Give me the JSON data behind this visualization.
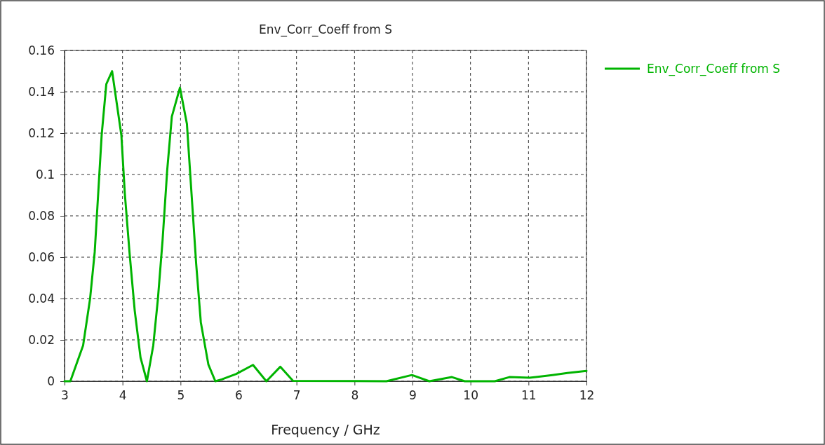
{
  "chart_data": {
    "type": "line",
    "title": "Env_Corr_Coeff from S",
    "xlabel": "Frequency / GHz",
    "xlim": [
      3,
      12
    ],
    "xticks": [
      3,
      4,
      5,
      6,
      7,
      8,
      9,
      10,
      11,
      12
    ],
    "ylim": [
      0,
      0.16
    ],
    "yticks": [
      0,
      0.02,
      0.04,
      0.06,
      0.08,
      0.1,
      0.12,
      0.14,
      0.16
    ],
    "grid": true,
    "legend": "top right",
    "line_style": "solid",
    "series": [
      {
        "name": "Env_Corr_Coeff from S",
        "color": "#00b400",
        "x": [
          3.0,
          3.1,
          3.32,
          3.44,
          3.52,
          3.58,
          3.64,
          3.72,
          3.82,
          3.98,
          4.04,
          4.12,
          4.21,
          4.31,
          4.42,
          4.53,
          4.61,
          4.69,
          4.77,
          4.85,
          4.99,
          5.11,
          5.19,
          5.27,
          5.35,
          5.48,
          5.6,
          5.71,
          5.96,
          6.25,
          6.48,
          6.72,
          6.94,
          8.55,
          8.99,
          9.29,
          9.68,
          9.9,
          10.42,
          10.67,
          11.02,
          11.41,
          11.67,
          12.0
        ],
        "values": [
          0,
          0,
          0.0173,
          0.0398,
          0.0624,
          0.0906,
          0.119,
          0.1437,
          0.15,
          0.119,
          0.0906,
          0.0624,
          0.0342,
          0.0115,
          0,
          0.0173,
          0.0398,
          0.068,
          0.102,
          0.128,
          0.142,
          0.1245,
          0.0906,
          0.0567,
          0.0285,
          0.0081,
          0,
          0.0009,
          0.0035,
          0.0079,
          0,
          0.007,
          0.0002,
          0,
          0.003,
          0,
          0.002,
          0,
          0,
          0.002,
          0.0017,
          0.003,
          0.004,
          0.005
        ]
      }
    ]
  }
}
